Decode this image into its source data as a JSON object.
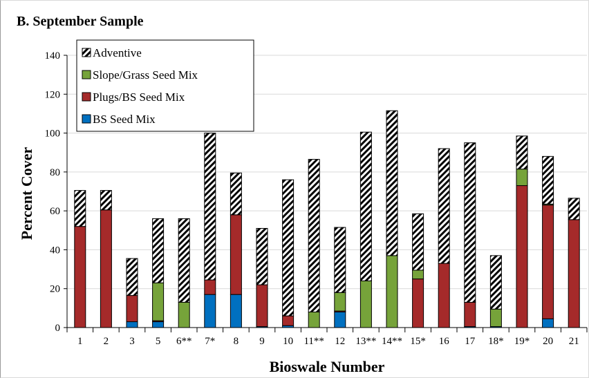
{
  "chart_data": {
    "type": "bar",
    "stacked": true,
    "title": "B. September Sample",
    "xlabel": "Bioswale Number",
    "ylabel": "Percent Cover",
    "ylim": [
      0,
      140
    ],
    "yticks": [
      0,
      20,
      40,
      60,
      80,
      100,
      120,
      140
    ],
    "grid": true,
    "legend": "top-left",
    "categories": [
      "1",
      "2",
      "3",
      "5",
      "6**",
      "7*",
      "8",
      "9",
      "10",
      "11**",
      "12",
      "13**",
      "14**",
      "15*",
      "16",
      "17",
      "18*",
      "19*",
      "20",
      "21"
    ],
    "series": [
      {
        "name": "BS Seed Mix",
        "color": "#0070c0",
        "pattern": "solid",
        "values": [
          0,
          0,
          3,
          3,
          0,
          17,
          17,
          0.5,
          1,
          0,
          8,
          0,
          0,
          0,
          0,
          0.5,
          0.5,
          0,
          4.5,
          0
        ]
      },
      {
        "name": "Plugs/BS Seed Mix",
        "color": "#a52a2a",
        "pattern": "solid",
        "values": [
          52,
          60.5,
          13.5,
          0.5,
          0,
          7.5,
          41,
          21.5,
          5,
          0,
          0.5,
          0,
          0,
          25,
          33,
          12.5,
          0,
          73,
          58.5,
          55.5
        ]
      },
      {
        "name": "Slope/Grass Seed Mix",
        "color": "#76a33a",
        "pattern": "solid",
        "values": [
          0,
          0,
          0,
          19.5,
          13,
          0,
          0,
          0,
          0,
          8,
          9.5,
          24,
          37,
          4.5,
          0,
          0,
          9,
          8.5,
          0.5,
          0
        ]
      },
      {
        "name": "Adventive",
        "color": "#ffffff",
        "pattern": "hatch",
        "values": [
          18.5,
          10,
          19,
          33,
          43,
          75.5,
          21.5,
          29,
          70,
          78.5,
          33.5,
          76.5,
          74.5,
          29,
          59,
          82,
          27.5,
          17,
          24.5,
          11
        ]
      }
    ]
  }
}
